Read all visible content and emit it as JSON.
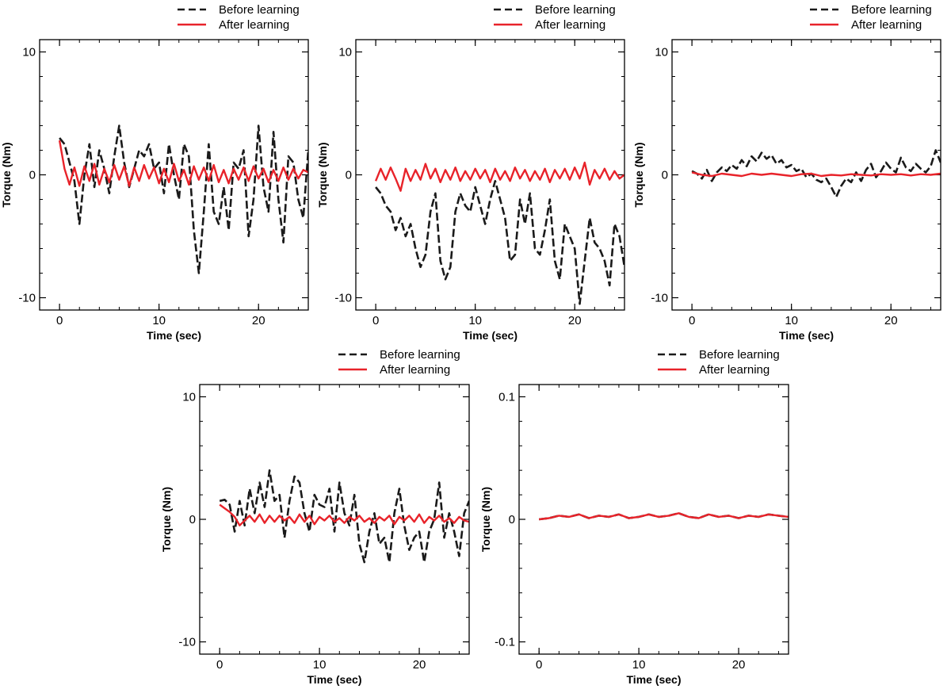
{
  "legend": {
    "before": "Before learning",
    "after": "After learning"
  },
  "colors": {
    "before": "#1a1a1a",
    "after": "#e8232a",
    "frame": "#000000"
  },
  "chart_data": [
    {
      "type": "line",
      "xlabel": "Time (sec)",
      "ylabel": "Torque (Nm)",
      "xlim": [
        -2,
        25
      ],
      "ylim": [
        -11,
        11
      ],
      "xticks": [
        0,
        10,
        20
      ],
      "yticks": [
        -10,
        0,
        10
      ],
      "xtick_labels": [
        "0",
        "10",
        "20"
      ],
      "ytick_labels": [
        "-10",
        "0",
        "10"
      ],
      "legend_position": "top-right",
      "series": [
        {
          "name": "Before learning",
          "style": "dashed",
          "x": [
            0,
            0.5,
            1,
            1.5,
            2,
            2.5,
            3,
            3.5,
            4,
            4.5,
            5,
            5.5,
            6,
            6.5,
            7,
            7.5,
            8,
            8.5,
            9,
            9.5,
            10,
            10.5,
            11,
            11.5,
            12,
            12.5,
            13,
            13.5,
            14,
            14.5,
            15,
            15.5,
            16,
            16.5,
            17,
            17.5,
            18,
            18.5,
            19,
            19.5,
            20,
            20.5,
            21,
            21.5,
            22,
            22.5,
            23,
            23.5,
            24,
            24.5,
            25
          ],
          "y": [
            3,
            2.5,
            1,
            -0.5,
            -4,
            0,
            2.5,
            -1,
            2,
            0.5,
            -1.5,
            1.5,
            4,
            1,
            -1,
            0.5,
            2,
            1.5,
            2.5,
            0.5,
            1,
            -1.5,
            2.5,
            0,
            -2,
            2.5,
            1.5,
            -4.5,
            -8,
            -3,
            2.5,
            -3,
            -4,
            -1,
            -4.5,
            1,
            0.5,
            2,
            -5,
            -2,
            4,
            -1,
            -3,
            3.5,
            -2,
            -5.5,
            1.5,
            1,
            -2,
            -3.5,
            2
          ]
        },
        {
          "name": "After learning",
          "style": "solid",
          "x": [
            0,
            0.5,
            1,
            1.5,
            2,
            2.5,
            3,
            3.5,
            4,
            4.5,
            5,
            5.5,
            6,
            6.5,
            7,
            7.5,
            8,
            8.5,
            9,
            9.5,
            10,
            10.5,
            11,
            11.5,
            12,
            12.5,
            13,
            13.5,
            14,
            14.5,
            15,
            15.5,
            16,
            16.5,
            17,
            17.5,
            18,
            18.5,
            19,
            19.5,
            20,
            20.5,
            21,
            21.5,
            22,
            22.5,
            23,
            23.5,
            24,
            24.5,
            25
          ],
          "y": [
            2.8,
            0.5,
            -0.8,
            0.6,
            -0.9,
            0.7,
            -0.5,
            0.9,
            -0.8,
            0.5,
            -0.6,
            0.8,
            -0.4,
            0.7,
            -0.9,
            0.6,
            -0.5,
            0.8,
            -0.3,
            0.6,
            -0.7,
            0.5,
            -0.6,
            0.9,
            -0.5,
            0.4,
            -0.8,
            0.7,
            -0.4,
            0.6,
            -0.5,
            0.8,
            -0.6,
            0.4,
            -0.7,
            0.5,
            -0.4,
            0.6,
            -0.5,
            0.7,
            -0.3,
            0.5,
            -0.6,
            0.4,
            -0.5,
            0.6,
            -0.4,
            0.5,
            -0.3,
            0.4,
            0.2
          ]
        }
      ]
    },
    {
      "type": "line",
      "xlabel": "Time (sec)",
      "ylabel": "Torque (Nm)",
      "xlim": [
        -2,
        25
      ],
      "ylim": [
        -11,
        11
      ],
      "xticks": [
        0,
        10,
        20
      ],
      "yticks": [
        -10,
        0,
        10
      ],
      "xtick_labels": [
        "0",
        "10",
        "20"
      ],
      "ytick_labels": [
        "-10",
        "0",
        "10"
      ],
      "legend_position": "top-right",
      "series": [
        {
          "name": "Before learning",
          "style": "dashed",
          "x": [
            0,
            0.5,
            1,
            1.5,
            2,
            2.5,
            3,
            3.5,
            4,
            4.5,
            5,
            5.5,
            6,
            6.5,
            7,
            7.5,
            8,
            8.5,
            9,
            9.5,
            10,
            10.5,
            11,
            11.5,
            12,
            12.5,
            13,
            13.5,
            14,
            14.5,
            15,
            15.5,
            16,
            16.5,
            17,
            17.5,
            18,
            18.5,
            19,
            19.5,
            20,
            20.5,
            21,
            21.5,
            22,
            22.5,
            23,
            23.5,
            24,
            24.5,
            25
          ],
          "y": [
            -1,
            -1.5,
            -2.5,
            -3,
            -4.5,
            -3.5,
            -5,
            -4,
            -6,
            -7.5,
            -6.5,
            -3,
            -1.5,
            -7,
            -8.5,
            -7.5,
            -3,
            -1.5,
            -2.5,
            -3,
            -1,
            -2.5,
            -4,
            -2,
            -0.5,
            -2,
            -3.5,
            -7,
            -6.5,
            -2,
            -4,
            -1.5,
            -6,
            -6.5,
            -4.5,
            -2,
            -7,
            -8.5,
            -4,
            -5,
            -6,
            -10.5,
            -7,
            -3.5,
            -5.5,
            -6,
            -7,
            -9,
            -4,
            -5,
            -7.5
          ]
        },
        {
          "name": "After learning",
          "style": "solid",
          "x": [
            0,
            0.5,
            1,
            1.5,
            2,
            2.5,
            3,
            3.5,
            4,
            4.5,
            5,
            5.5,
            6,
            6.5,
            7,
            7.5,
            8,
            8.5,
            9,
            9.5,
            10,
            10.5,
            11,
            11.5,
            12,
            12.5,
            13,
            13.5,
            14,
            14.5,
            15,
            15.5,
            16,
            16.5,
            17,
            17.5,
            18,
            18.5,
            19,
            19.5,
            20,
            20.5,
            21,
            21.5,
            22,
            22.5,
            23,
            23.5,
            24,
            24.5,
            25
          ],
          "y": [
            -0.5,
            0.5,
            -0.4,
            0.6,
            -0.3,
            -1.3,
            0.5,
            -0.5,
            0.4,
            -0.4,
            0.9,
            -0.3,
            0.5,
            -0.6,
            0.4,
            -0.4,
            0.6,
            -0.5,
            0.3,
            -0.4,
            0.5,
            -0.3,
            0.4,
            -0.6,
            0.5,
            -0.4,
            0.3,
            -0.5,
            0.6,
            -0.3,
            0.4,
            -0.5,
            0.3,
            -0.4,
            0.5,
            -0.6,
            0.4,
            -0.3,
            0.5,
            -0.4,
            0.6,
            -0.3,
            1,
            -0.8,
            0.4,
            -0.3,
            0.5,
            -0.4,
            0.3,
            -0.3,
            0
          ]
        }
      ]
    },
    {
      "type": "line",
      "xlabel": "Time (sec)",
      "ylabel": "Torque (Nm)",
      "xlim": [
        -2,
        25
      ],
      "ylim": [
        -11,
        11
      ],
      "xticks": [
        0,
        10,
        20
      ],
      "yticks": [
        -10,
        0,
        10
      ],
      "xtick_labels": [
        "0",
        "10",
        "20"
      ],
      "ytick_labels": [
        "-10",
        "0",
        "10"
      ],
      "legend_position": "top-right",
      "series": [
        {
          "name": "Before learning",
          "style": "dashed",
          "x": [
            0,
            0.5,
            1,
            1.5,
            2,
            2.5,
            3,
            3.5,
            4,
            4.5,
            5,
            5.5,
            6,
            6.5,
            7,
            7.5,
            8,
            8.5,
            9,
            9.5,
            10,
            10.5,
            11,
            11.5,
            12,
            12.5,
            13,
            13.5,
            14,
            14.5,
            15,
            15.5,
            16,
            16.5,
            17,
            17.5,
            18,
            18.5,
            19,
            19.5,
            20,
            20.5,
            21,
            21.5,
            22,
            22.5,
            23,
            23.5,
            24,
            24.5,
            25
          ],
          "y": [
            0.3,
            0.1,
            -0.3,
            0.4,
            -0.5,
            0.2,
            0.6,
            0.3,
            0.8,
            0.5,
            1.2,
            0.7,
            1.5,
            1.1,
            1.8,
            1.3,
            1.6,
            0.9,
            1.2,
            0.6,
            0.8,
            0.3,
            0.5,
            -0.2,
            0.1,
            -0.4,
            -0.6,
            -0.3,
            -1,
            -1.8,
            -0.9,
            -0.3,
            -0.6,
            0.2,
            -0.5,
            0.4,
            0.9,
            -0.2,
            0.3,
            1,
            0.5,
            0.2,
            1.4,
            0.6,
            0.3,
            0.9,
            0.5,
            0.2,
            0.7,
            2,
            1
          ]
        },
        {
          "name": "After learning",
          "style": "solid",
          "x": [
            0,
            1,
            2,
            3,
            4,
            5,
            6,
            7,
            8,
            9,
            10,
            11,
            12,
            13,
            14,
            15,
            16,
            17,
            18,
            19,
            20,
            21,
            22,
            23,
            24,
            25
          ],
          "y": [
            0.2,
            0,
            -0.1,
            0.1,
            0,
            -0.1,
            0.1,
            0,
            0.1,
            0,
            -0.1,
            0.05,
            0.1,
            -0.1,
            0,
            -0.05,
            0.05,
            0,
            -0.05,
            0.05,
            0,
            0.05,
            -0.05,
            0.05,
            0,
            0.1
          ]
        }
      ]
    },
    {
      "type": "line",
      "xlabel": "Time (sec)",
      "ylabel": "Torque (Nm)",
      "xlim": [
        -2,
        25
      ],
      "ylim": [
        -11,
        11
      ],
      "xticks": [
        0,
        10,
        20
      ],
      "yticks": [
        -10,
        0,
        10
      ],
      "xtick_labels": [
        "0",
        "10",
        "20"
      ],
      "ytick_labels": [
        "-10",
        "0",
        "10"
      ],
      "legend_position": "top-right",
      "series": [
        {
          "name": "Before learning",
          "style": "dashed",
          "x": [
            0,
            0.5,
            1,
            1.5,
            2,
            2.5,
            3,
            3.5,
            4,
            4.5,
            5,
            5.5,
            6,
            6.5,
            7,
            7.5,
            8,
            8.5,
            9,
            9.5,
            10,
            10.5,
            11,
            11.5,
            12,
            12.5,
            13,
            13.5,
            14,
            14.5,
            15,
            15.5,
            16,
            16.5,
            17,
            17.5,
            18,
            18.5,
            19,
            19.5,
            20,
            20.5,
            21,
            21.5,
            22,
            22.5,
            23,
            23.5,
            24,
            24.5,
            25
          ],
          "y": [
            1.5,
            1.6,
            1.2,
            -1,
            1.5,
            -0.5,
            2.5,
            0.5,
            3,
            1,
            4,
            1.5,
            2,
            -1.5,
            1.5,
            3.5,
            3,
            0.5,
            -1,
            2,
            1.2,
            1,
            2.5,
            -1,
            3,
            0.5,
            -0.5,
            2,
            -2,
            -3.5,
            -1,
            0.5,
            -2,
            -1.5,
            -3.5,
            0.5,
            2.5,
            -0.5,
            -2.5,
            -1.5,
            -1,
            -3.5,
            -1,
            0,
            3,
            -1.5,
            0.5,
            -1,
            -3,
            0.5,
            1.5
          ]
        },
        {
          "name": "After learning",
          "style": "solid",
          "x": [
            0,
            0.5,
            1,
            1.5,
            2,
            2.5,
            3,
            3.5,
            4,
            4.5,
            5,
            5.5,
            6,
            6.5,
            7,
            7.5,
            8,
            8.5,
            9,
            9.5,
            10,
            10.5,
            11,
            11.5,
            12,
            12.5,
            13,
            13.5,
            14,
            14.5,
            15,
            15.5,
            16,
            16.5,
            17,
            17.5,
            18,
            18.5,
            19,
            19.5,
            20,
            20.5,
            21,
            21.5,
            22,
            22.5,
            23,
            23.5,
            24,
            24.5,
            25
          ],
          "y": [
            1.2,
            0.9,
            0.6,
            0.2,
            -0.5,
            -0.1,
            0.3,
            -0.2,
            0.4,
            -0.3,
            0.3,
            -0.2,
            0.3,
            -0.1,
            0.2,
            -0.3,
            0.4,
            -0.2,
            0.3,
            -0.4,
            0.2,
            -0.1,
            0.3,
            -0.2,
            0.1,
            -0.3,
            0.2,
            -0.1,
            0.3,
            -0.2,
            0.1,
            -0.3,
            0.2,
            -0.1,
            0.3,
            -0.4,
            0.2,
            -0.1,
            0.3,
            -0.2,
            0.4,
            -0.3,
            0.2,
            -0.1,
            0.3,
            -0.2,
            0.1,
            -0.3,
            0.2,
            -0.1,
            -0.2
          ]
        }
      ]
    },
    {
      "type": "line",
      "xlabel": "Time (sec)",
      "ylabel": "Torque (Nm)",
      "xlim": [
        -2,
        25
      ],
      "ylim": [
        -0.11,
        0.11
      ],
      "xticks": [
        0,
        10,
        20
      ],
      "yticks": [
        -0.1,
        0,
        0.1
      ],
      "xtick_labels": [
        "0",
        "10",
        "20"
      ],
      "ytick_labels": [
        "-0.1",
        "0",
        "0.1"
      ],
      "legend_position": "top-right",
      "series": [
        {
          "name": "Before learning",
          "style": "dashed",
          "x": [
            0,
            1,
            2,
            3,
            4,
            5,
            6,
            7,
            8,
            9,
            10,
            11,
            12,
            13,
            14,
            15,
            16,
            17,
            18,
            19,
            20,
            21,
            22,
            23,
            24,
            25
          ],
          "y": [
            0,
            0.001,
            0.003,
            0.002,
            0.004,
            0.001,
            0.003,
            0.002,
            0.004,
            0.001,
            0.002,
            0.004,
            0.002,
            0.003,
            0.005,
            0.002,
            0.001,
            0.004,
            0.002,
            0.003,
            0.001,
            0.003,
            0.002,
            0.004,
            0.003,
            0.002
          ]
        },
        {
          "name": "After learning",
          "style": "solid",
          "x": [
            0,
            1,
            2,
            3,
            4,
            5,
            6,
            7,
            8,
            9,
            10,
            11,
            12,
            13,
            14,
            15,
            16,
            17,
            18,
            19,
            20,
            21,
            22,
            23,
            24,
            25
          ],
          "y": [
            0,
            0.001,
            0.003,
            0.002,
            0.004,
            0.001,
            0.003,
            0.002,
            0.004,
            0.001,
            0.002,
            0.004,
            0.002,
            0.003,
            0.005,
            0.002,
            0.001,
            0.004,
            0.002,
            0.003,
            0.001,
            0.003,
            0.002,
            0.004,
            0.003,
            0.002
          ]
        }
      ]
    }
  ]
}
